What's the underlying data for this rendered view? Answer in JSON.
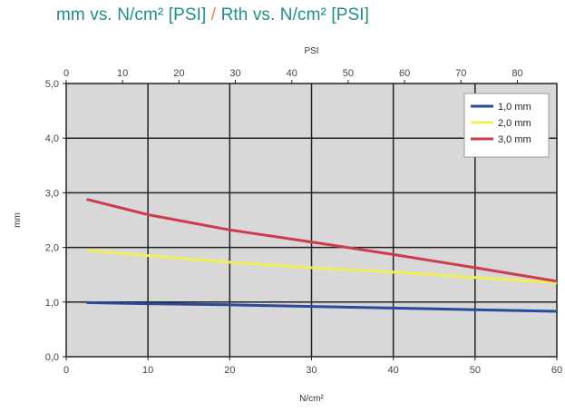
{
  "title": {
    "part1": "mm vs. N/cm² [PSI]",
    "separator": "/",
    "part2": "Rth vs. N/cm² [PSI]"
  },
  "chart_data": {
    "type": "line",
    "xlabel": "N/cm²",
    "ylabel": "mm",
    "x2label": "PSI",
    "xlim": [
      0,
      60
    ],
    "ylim": [
      0,
      5
    ],
    "x2lim": [
      0,
      87
    ],
    "xticks": [
      "0",
      "10",
      "20",
      "30",
      "40",
      "50",
      "60"
    ],
    "yticks": [
      "0,0",
      "1,0",
      "2,0",
      "3,0",
      "4,0",
      "5,0"
    ],
    "x2ticks": [
      "0",
      "10",
      "20",
      "30",
      "40",
      "50",
      "60",
      "70",
      "80"
    ],
    "grid": true,
    "legend_position": "top-right",
    "series": [
      {
        "name": "1,0 mm",
        "color": "#2b4a9b",
        "x": [
          2.5,
          10,
          20,
          30,
          40,
          50,
          60
        ],
        "y": [
          0.99,
          0.97,
          0.95,
          0.92,
          0.89,
          0.86,
          0.83
        ]
      },
      {
        "name": "2,0 mm",
        "color": "#f2ec5a",
        "x": [
          2.5,
          10,
          20,
          30,
          40,
          50,
          60
        ],
        "y": [
          1.95,
          1.85,
          1.73,
          1.63,
          1.55,
          1.45,
          1.35
        ]
      },
      {
        "name": "3,0 mm",
        "color": "#cc3d4b",
        "x": [
          2.5,
          10,
          20,
          30,
          40,
          50,
          60
        ],
        "y": [
          2.88,
          2.6,
          2.32,
          2.1,
          1.87,
          1.63,
          1.38
        ]
      }
    ]
  }
}
